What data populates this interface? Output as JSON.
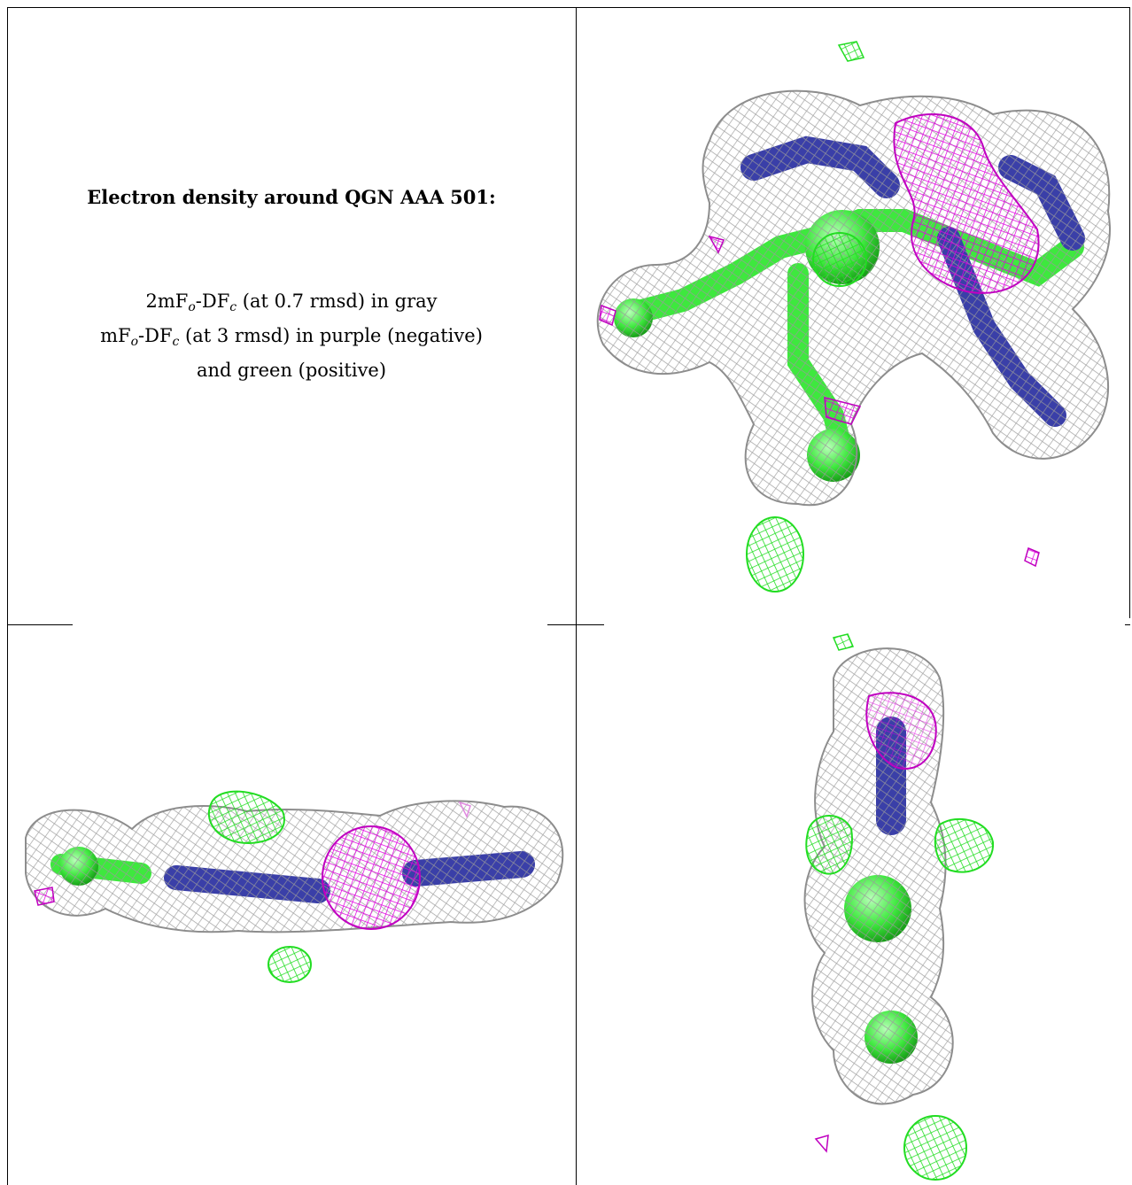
{
  "caption": {
    "title": "Electron density around QGN AAA 501:",
    "line1_prefix": "2mF",
    "line1_sub_o": "o",
    "line1_mid": "-DF",
    "line1_sub_c": "c",
    "line1_suffix": " (at 0.7 rmsd) in gray",
    "line2_prefix": "mF",
    "line2_sub_o": "o",
    "line2_mid": "-DF",
    "line2_sub_c": "c",
    "line2_suffix": " (at 3 rmsd) in purple (negative)",
    "line3": "and green (positive)"
  },
  "colors": {
    "mesh_gray": "#a9a9a9",
    "negative_purple": "#e000e0",
    "positive_green": "#33ee33",
    "atom_blue": "#3a3fa8",
    "atom_green": "#4cf04c"
  },
  "panels": [
    "caption",
    "top-view",
    "side-view",
    "end-view"
  ]
}
